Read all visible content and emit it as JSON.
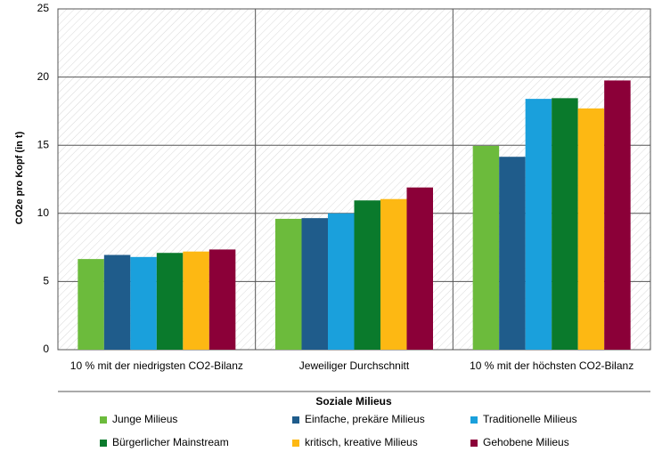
{
  "chart_data": {
    "type": "bar",
    "y_label": "CO2e pro Kopf (in t)",
    "x_label": "Soziale Milieus",
    "categories": [
      "10 % mit der niedrigsten CO2-Bilanz",
      "Jeweiliger Durchschnitt",
      "10 % mit der höchsten CO2-Bilanz"
    ],
    "series": [
      {
        "name": "Junge Milieus",
        "color": "#6cbb3c",
        "values": [
          6.65,
          9.6,
          14.95
        ]
      },
      {
        "name": "Einfache, prekäre Milieus",
        "color": "#1f5c8b",
        "values": [
          6.95,
          9.65,
          14.15
        ]
      },
      {
        "name": "Traditionelle Milieus",
        "color": "#1aa0dc",
        "values": [
          6.8,
          10.0,
          18.4
        ]
      },
      {
        "name": "Bürgerlicher Mainstream",
        "color": "#0a7a2c",
        "values": [
          7.1,
          10.95,
          18.45
        ]
      },
      {
        "name": "kritisch, kreative Milieus",
        "color": "#fdb813",
        "values": [
          7.2,
          11.05,
          17.7
        ]
      },
      {
        "name": "Gehobene Milieus",
        "color": "#8b0038",
        "values": [
          7.35,
          11.9,
          19.75
        ]
      }
    ],
    "ylim": [
      0,
      25
    ],
    "yticks": [
      0,
      5,
      10,
      15,
      20,
      25
    ],
    "grid": true
  }
}
